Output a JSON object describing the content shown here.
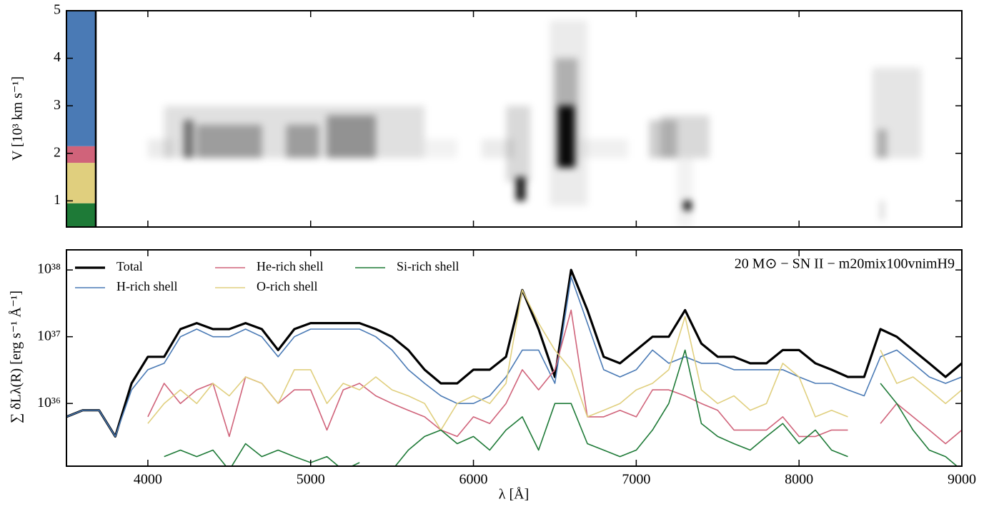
{
  "chart_data": [
    {
      "type": "heatmap",
      "y_label": "V [10³ km s⁻¹]",
      "xlim": [
        3500,
        9000
      ],
      "xticks": [
        4000,
        5000,
        6000,
        7000,
        8000,
        9000
      ],
      "ylim": [
        0.45,
        5
      ],
      "yticks": [
        1,
        2,
        3,
        4,
        5
      ],
      "shell_bar": {
        "xlim": [
          3500,
          3680
        ],
        "bands": [
          {
            "color": "#1e7a37",
            "ylim": [
              0.45,
              0.95
            ]
          },
          {
            "color": "#e0cf7e",
            "ylim": [
              0.95,
              1.8
            ]
          },
          {
            "color": "#d0637a",
            "ylim": [
              1.8,
              2.15
            ]
          },
          {
            "color": "#4a7ab5",
            "ylim": [
              2.15,
              5
            ]
          }
        ]
      },
      "cells": [
        {
          "x": [
            4000,
            4150
          ],
          "y": [
            1.9,
            2.3
          ],
          "v": 0.08
        },
        {
          "x": [
            4100,
            5700
          ],
          "y": [
            1.9,
            3.0
          ],
          "v": 0.12
        },
        {
          "x": [
            4220,
            4280
          ],
          "y": [
            1.9,
            2.7
          ],
          "v": 0.5
        },
        {
          "x": [
            4300,
            4700
          ],
          "y": [
            1.9,
            2.6
          ],
          "v": 0.3
        },
        {
          "x": [
            4850,
            5050
          ],
          "y": [
            1.9,
            2.6
          ],
          "v": 0.3
        },
        {
          "x": [
            5100,
            5400
          ],
          "y": [
            1.9,
            2.8
          ],
          "v": 0.35
        },
        {
          "x": [
            5700,
            5900
          ],
          "y": [
            1.9,
            2.3
          ],
          "v": 0.05
        },
        {
          "x": [
            6050,
            6250
          ],
          "y": [
            1.9,
            2.3
          ],
          "v": 0.08
        },
        {
          "x": [
            6200,
            6350
          ],
          "y": [
            1.4,
            3.0
          ],
          "v": 0.15
        },
        {
          "x": [
            6260,
            6320
          ],
          "y": [
            1.0,
            1.5
          ],
          "v": 0.9
        },
        {
          "x": [
            6470,
            6700
          ],
          "y": [
            0.9,
            4.8
          ],
          "v": 0.08
        },
        {
          "x": [
            6500,
            6640
          ],
          "y": [
            1.7,
            4.0
          ],
          "v": 0.25
        },
        {
          "x": [
            6520,
            6620
          ],
          "y": [
            1.7,
            3.0
          ],
          "v": 0.95
        },
        {
          "x": [
            6650,
            6950
          ],
          "y": [
            1.9,
            2.3
          ],
          "v": 0.06
        },
        {
          "x": [
            7080,
            7250
          ],
          "y": [
            1.9,
            2.7
          ],
          "v": 0.2
        },
        {
          "x": [
            7150,
            7450
          ],
          "y": [
            1.9,
            2.8
          ],
          "v": 0.15
        },
        {
          "x": [
            7290,
            7340
          ],
          "y": [
            0.8,
            1.0
          ],
          "v": 0.95
        },
        {
          "x": [
            7250,
            7350
          ],
          "y": [
            0.45,
            1.9
          ],
          "v": 0.05
        },
        {
          "x": [
            8450,
            8750
          ],
          "y": [
            1.9,
            3.8
          ],
          "v": 0.1
        },
        {
          "x": [
            8480,
            8540
          ],
          "y": [
            1.9,
            2.5
          ],
          "v": 0.25
        },
        {
          "x": [
            8500,
            8520
          ],
          "y": [
            0.6,
            1.0
          ],
          "v": 0.2
        }
      ]
    },
    {
      "type": "line",
      "x_label": "λ [Å]",
      "y_label": "∑ δLλ(R) [erg s⁻¹ Å⁻¹]",
      "annotation": "20 M⊙ − SN II − m20mix100vnimH9",
      "log_y": true,
      "legend": "upper left",
      "xlim": [
        3500,
        9000
      ],
      "xticks": [
        4000,
        5000,
        6000,
        7000,
        8000,
        9000
      ],
      "ylim": [
        1.15e+35,
        2e+38
      ],
      "yticks": [
        {
          "value": 1e+36,
          "label": "10³⁶"
        },
        {
          "value": 1e+37,
          "label": "10³⁷"
        },
        {
          "value": 1e+38,
          "label": "10³⁸"
        }
      ],
      "x": [
        3500,
        3600,
        3700,
        3800,
        3900,
        4000,
        4100,
        4200,
        4300,
        4400,
        4500,
        4600,
        4700,
        4800,
        4900,
        5000,
        5100,
        5200,
        5300,
        5400,
        5500,
        5600,
        5700,
        5800,
        5900,
        6000,
        6100,
        6200,
        6300,
        6400,
        6500,
        6600,
        6700,
        6800,
        6900,
        7000,
        7100,
        7200,
        7300,
        7400,
        7500,
        7600,
        7700,
        7800,
        7900,
        8000,
        8100,
        8200,
        8300,
        8400,
        8500,
        8600,
        8700,
        8800,
        8900,
        9000
      ],
      "series": [
        {
          "name": "Total",
          "color": "#000000",
          "width": 3.2,
          "values": [
            6.3e+35,
            7.9e+35,
            7.9e+35,
            3.2e+35,
            2e+36,
            5e+36,
            5e+36,
            1.3e+37,
            1.6e+37,
            1.3e+37,
            1.3e+37,
            1.6e+37,
            1.3e+37,
            6.3e+36,
            1.3e+37,
            1.6e+37,
            1.6e+37,
            1.6e+37,
            1.6e+37,
            1.3e+37,
            1e+37,
            6.3e+36,
            3.2e+36,
            2e+36,
            2e+36,
            3.2e+36,
            3.2e+36,
            5e+36,
            5e+37,
            1.3e+37,
            2.5e+36,
            1e+38,
            2.5e+37,
            5e+36,
            4e+36,
            6.3e+36,
            1e+37,
            1e+37,
            2.5e+37,
            7.9e+36,
            5e+36,
            5e+36,
            4e+36,
            4e+36,
            6.3e+36,
            6.3e+36,
            4e+36,
            3.2e+36,
            2.5e+36,
            2.5e+36,
            1.3e+37,
            1e+37,
            6.3e+36,
            4e+36,
            2.5e+36,
            4e+36
          ]
        },
        {
          "name": "H-rich shell",
          "color": "#4a7ab5",
          "width": 1.6,
          "values": [
            6.3e+35,
            7.9e+35,
            7.9e+35,
            3.2e+35,
            1.6e+36,
            3.2e+36,
            4e+36,
            1e+37,
            1.3e+37,
            1e+37,
            1e+37,
            1.3e+37,
            1e+37,
            5e+36,
            1e+37,
            1.3e+37,
            1.3e+37,
            1.3e+37,
            1.3e+37,
            1e+37,
            6.3e+36,
            3.2e+36,
            2e+36,
            1.3e+36,
            1e+36,
            1e+36,
            1.3e+36,
            2.5e+36,
            6.3e+36,
            6.3e+36,
            2e+36,
            7.9e+37,
            1.6e+37,
            3.2e+36,
            2.5e+36,
            3.2e+36,
            6.3e+36,
            4e+36,
            5e+36,
            4e+36,
            4e+36,
            3.2e+36,
            3.2e+36,
            3.2e+36,
            3.2e+36,
            2.5e+36,
            2e+36,
            2e+36,
            1.6e+36,
            1.3e+36,
            5e+36,
            6.3e+36,
            4e+36,
            2.5e+36,
            2e+36,
            2.5e+36
          ]
        },
        {
          "name": "He-rich shell",
          "color": "#d0637a",
          "width": 1.6,
          "values": [
            null,
            null,
            null,
            null,
            null,
            6.3e+35,
            2e+36,
            1e+36,
            1.6e+36,
            2e+36,
            3.2e+35,
            2.5e+36,
            2e+36,
            1e+36,
            1.6e+36,
            1.6e+36,
            4e+35,
            1.6e+36,
            2e+36,
            1.3e+36,
            1e+36,
            7.9e+35,
            6.3e+35,
            4e+35,
            3.2e+35,
            6.3e+35,
            5e+35,
            1e+36,
            3.2e+36,
            1.6e+36,
            3.2e+36,
            2.5e+37,
            6.3e+35,
            6.3e+35,
            7.9e+35,
            6.3e+35,
            1.6e+36,
            1.6e+36,
            1.3e+36,
            1e+36,
            7.9e+35,
            4e+35,
            4e+35,
            4e+35,
            6.3e+35,
            3.2e+35,
            3.2e+35,
            4e+35,
            4e+35,
            null,
            5e+35,
            1e+36,
            6.3e+35,
            4e+35,
            2.5e+35,
            4e+35
          ]
        },
        {
          "name": "O-rich shell",
          "color": "#e0cf7e",
          "width": 1.6,
          "values": [
            null,
            null,
            null,
            null,
            null,
            5e+35,
            1e+36,
            1.6e+36,
            1e+36,
            2e+36,
            1.3e+36,
            2.5e+36,
            2e+36,
            1e+36,
            3.2e+36,
            3.2e+36,
            1e+36,
            2e+36,
            1.6e+36,
            2.5e+36,
            1.6e+36,
            1.3e+36,
            1e+36,
            4e+35,
            1e+36,
            1.3e+36,
            1e+36,
            2e+36,
            5e+37,
            1.6e+37,
            6.3e+36,
            3.2e+36,
            6.3e+35,
            7.9e+35,
            1e+36,
            1.6e+36,
            2e+36,
            3.2e+36,
            2e+37,
            1.6e+36,
            1e+36,
            1.3e+36,
            7.9e+35,
            1e+36,
            4e+36,
            2.5e+36,
            6.3e+35,
            7.9e+35,
            6.3e+35,
            null,
            6.3e+36,
            2e+36,
            2.5e+36,
            1.6e+36,
            1e+36,
            1.6e+36
          ]
        },
        {
          "name": "Si-rich shell",
          "color": "#1e7a37",
          "width": 1.6,
          "values": [
            null,
            null,
            null,
            null,
            null,
            null,
            1.6e+35,
            2e+35,
            1.6e+35,
            2e+35,
            1e+35,
            2.5e+35,
            1.6e+35,
            2e+35,
            1.6e+35,
            1.3e+35,
            1.6e+35,
            1e+35,
            1.3e+35,
            null,
            1e+35,
            2e+35,
            3.2e+35,
            4e+35,
            2.5e+35,
            3.2e+35,
            2e+35,
            4e+35,
            6.3e+35,
            2e+35,
            1e+36,
            1e+36,
            2.5e+35,
            2e+35,
            1.6e+35,
            2e+35,
            4e+35,
            1e+36,
            6.3e+36,
            5e+35,
            3.2e+35,
            2.5e+35,
            2e+35,
            3.2e+35,
            5e+35,
            2.5e+35,
            4e+35,
            2e+35,
            1.6e+35,
            null,
            2e+36,
            1e+36,
            4e+35,
            2e+35,
            1.6e+35,
            1e+35
          ]
        }
      ]
    }
  ]
}
